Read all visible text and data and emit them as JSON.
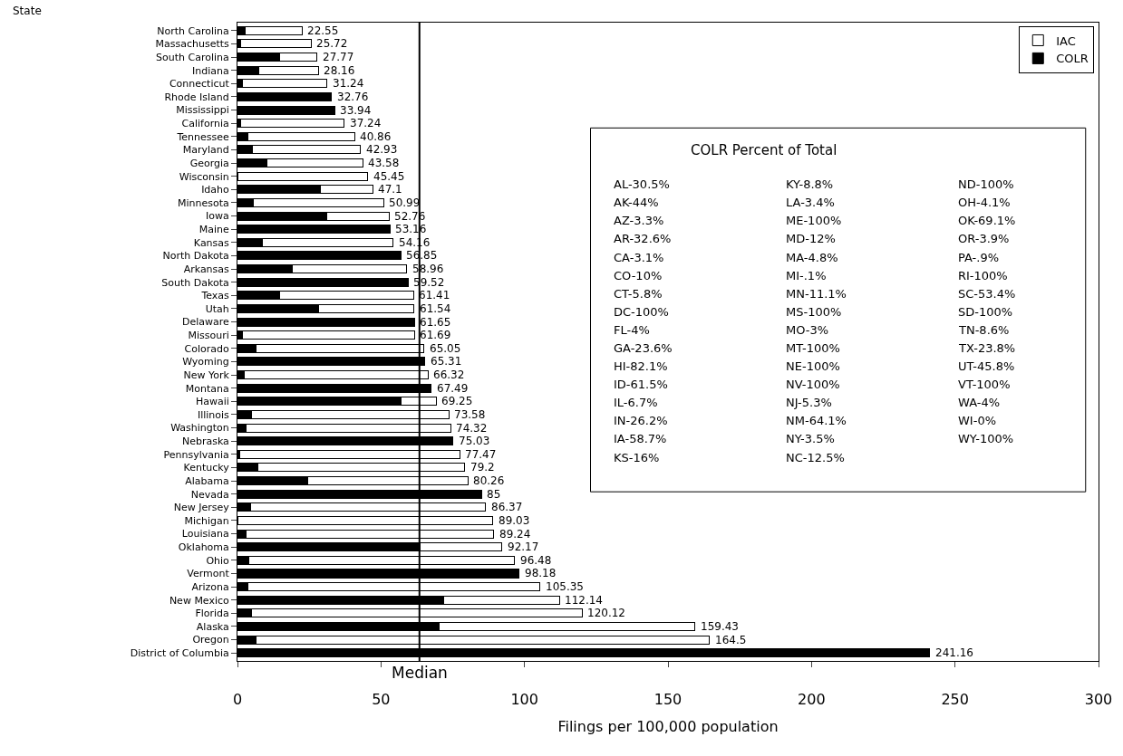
{
  "chart_data": {
    "type": "bar",
    "orientation": "horizontal",
    "stacked": true,
    "xlabel": "Filings per 100,000 population",
    "categories": [
      "North Carolina",
      "Massachusetts",
      "South Carolina",
      "Indiana",
      "Connecticut",
      "Rhode Island",
      "Mississippi",
      "California",
      "Tennessee",
      "Maryland",
      "Georgia",
      "Wisconsin",
      "Idaho",
      "Minnesota",
      "Iowa",
      "Maine",
      "Kansas",
      "North Dakota",
      "Arkansas",
      "South Dakota",
      "Texas",
      "Utah",
      "Delaware",
      "Missouri",
      "Colorado",
      "Wyoming",
      "New York",
      "Montana",
      "Hawaii",
      "Illinois",
      "Washington",
      "Nebraska",
      "Pennsylvania",
      "Kentucky",
      "Alabama",
      "Nevada",
      "New Jersey",
      "Michigan",
      "Louisiana",
      "Oklahoma",
      "Ohio",
      "Vermont",
      "Arizona",
      "New Mexico",
      "Florida",
      "Alaska",
      "Oregon",
      "District of Columbia"
    ],
    "series": [
      {
        "name": "COLR",
        "color": "#000000",
        "values": [
          2.82,
          1.23,
          14.83,
          7.38,
          1.81,
          32.76,
          33.94,
          1.15,
          3.51,
          5.15,
          10.28,
          0,
          28.97,
          5.66,
          30.97,
          53.16,
          8.67,
          56.85,
          19.22,
          59.52,
          14.62,
          28.19,
          61.65,
          1.85,
          6.51,
          65.31,
          2.32,
          67.49,
          56.85,
          4.93,
          2.97,
          75.03,
          0.7,
          6.97,
          24.48,
          85,
          4.58,
          0.09,
          3.03,
          63.69,
          3.96,
          98.18,
          3.48,
          71.88,
          4.8,
          70.15,
          6.42,
          241.16
        ]
      },
      {
        "name": "IAC",
        "color": "#ffffff",
        "values": [
          19.73,
          24.49,
          12.94,
          20.78,
          29.43,
          0,
          0,
          36.09,
          37.35,
          37.78,
          33.3,
          45.45,
          18.13,
          45.33,
          21.79,
          0,
          45.49,
          0,
          39.74,
          0,
          46.79,
          33.35,
          0,
          59.84,
          58.54,
          0,
          64.0,
          0,
          12.4,
          68.65,
          71.35,
          0,
          76.77,
          72.23,
          55.78,
          0,
          81.79,
          88.94,
          86.21,
          28.48,
          92.52,
          0,
          101.87,
          40.26,
          115.32,
          89.28,
          158.08,
          0
        ]
      }
    ],
    "totals": [
      "22.55",
      "25.72",
      "27.77",
      "28.16",
      "31.24",
      "32.76",
      "33.94",
      "37.24",
      "40.86",
      "42.93",
      "43.58",
      "45.45",
      "47.1",
      "50.99",
      "52.76",
      "53.16",
      "54.16",
      "56.85",
      "58.96",
      "59.52",
      "61.41",
      "61.54",
      "61.65",
      "61.69",
      "65.05",
      "65.31",
      "66.32",
      "67.49",
      "69.25",
      "73.58",
      "74.32",
      "75.03",
      "77.47",
      "79.2",
      "80.26",
      "85",
      "86.37",
      "89.03",
      "89.24",
      "92.17",
      "96.48",
      "98.18",
      "105.35",
      "112.14",
      "120.12",
      "159.43",
      "164.5",
      "241.16"
    ],
    "xlim": [
      0,
      300
    ],
    "xticks": [
      0,
      50,
      100,
      150,
      200,
      250,
      300
    ],
    "legend": "top right",
    "ref_lines": [
      {
        "axis": "x",
        "value": 63.4,
        "label": "Median",
        "color": "#000000"
      }
    ],
    "annotations": [
      "State",
      "COLR Percent of Total",
      "AL-30.5%",
      "AK-44%",
      "AZ-3.3%",
      "AR-32.6%",
      "CA-3.1%",
      "CO-10%",
      "CT-5.8%",
      "DC-100%",
      "FL-4%",
      "GA-23.6%",
      "HI-82.1%",
      "ID-61.5%",
      "IL-6.7%",
      "IN-26.2%",
      "IA-58.7%",
      "KS-16%",
      "KY-8.8%",
      "LA-3.4%",
      "ME-100%",
      "MD-12%",
      "MA-4.8%",
      "MI-.1%",
      "MN-11.1%",
      "MS-100%",
      "MO-3%",
      "MT-100%",
      "NE-100%",
      "NV-100%",
      "NJ-5.3%",
      "NM-64.1%",
      "NY-3.5%",
      "NC-12.5%",
      "ND-100%",
      "OH-4.1%",
      "OK-69.1%",
      "OR-3.9%",
      "PA-.9%",
      "RI-100%",
      "SC-53.4%",
      "SD-100%",
      "TN-8.6%",
      "TX-23.8%",
      "UT-45.8%",
      "VT-100%",
      "WA-4%",
      "WI-0%",
      "WY-100%"
    ]
  }
}
